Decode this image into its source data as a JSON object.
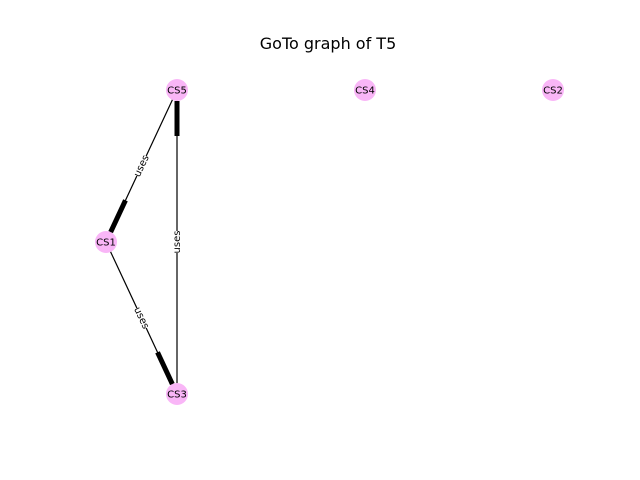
{
  "title": "GoTo graph of T5",
  "colors": {
    "node_fill": "#f9b6f7",
    "edge": "#000000",
    "background": "#ffffff"
  },
  "nodes": [
    {
      "id": "CS5",
      "label": "CS5"
    },
    {
      "id": "CS4",
      "label": "CS4"
    },
    {
      "id": "CS2",
      "label": "CS2"
    },
    {
      "id": "CS1",
      "label": "CS1"
    },
    {
      "id": "CS3",
      "label": "CS3"
    }
  ],
  "edges": [
    {
      "source": "CS5",
      "target": "CS1",
      "label": "uses"
    },
    {
      "source": "CS1",
      "target": "CS3",
      "label": "uses"
    },
    {
      "source": "CS3",
      "target": "CS5",
      "label": "uses"
    }
  ]
}
